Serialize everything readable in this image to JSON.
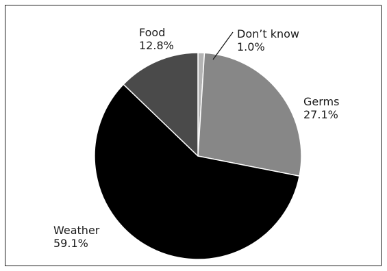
{
  "chart_data": {
    "type": "pie",
    "slices": [
      {
        "label": "Don’t know",
        "value": 1.0,
        "value_label": "1.0%",
        "color": "#b3b3b3"
      },
      {
        "label": "Germs",
        "value": 27.1,
        "value_label": "27.1%",
        "color": "#878787"
      },
      {
        "label": "Weather",
        "value": 59.1,
        "value_label": "59.1%",
        "color": "#000000"
      },
      {
        "label": "Food",
        "value": 12.8,
        "value_label": "12.8%",
        "color": "#4a4a4a"
      }
    ],
    "start": "12 o'clock",
    "direction": "clockwise",
    "legend": "none",
    "edge_color": "#ffffff"
  }
}
